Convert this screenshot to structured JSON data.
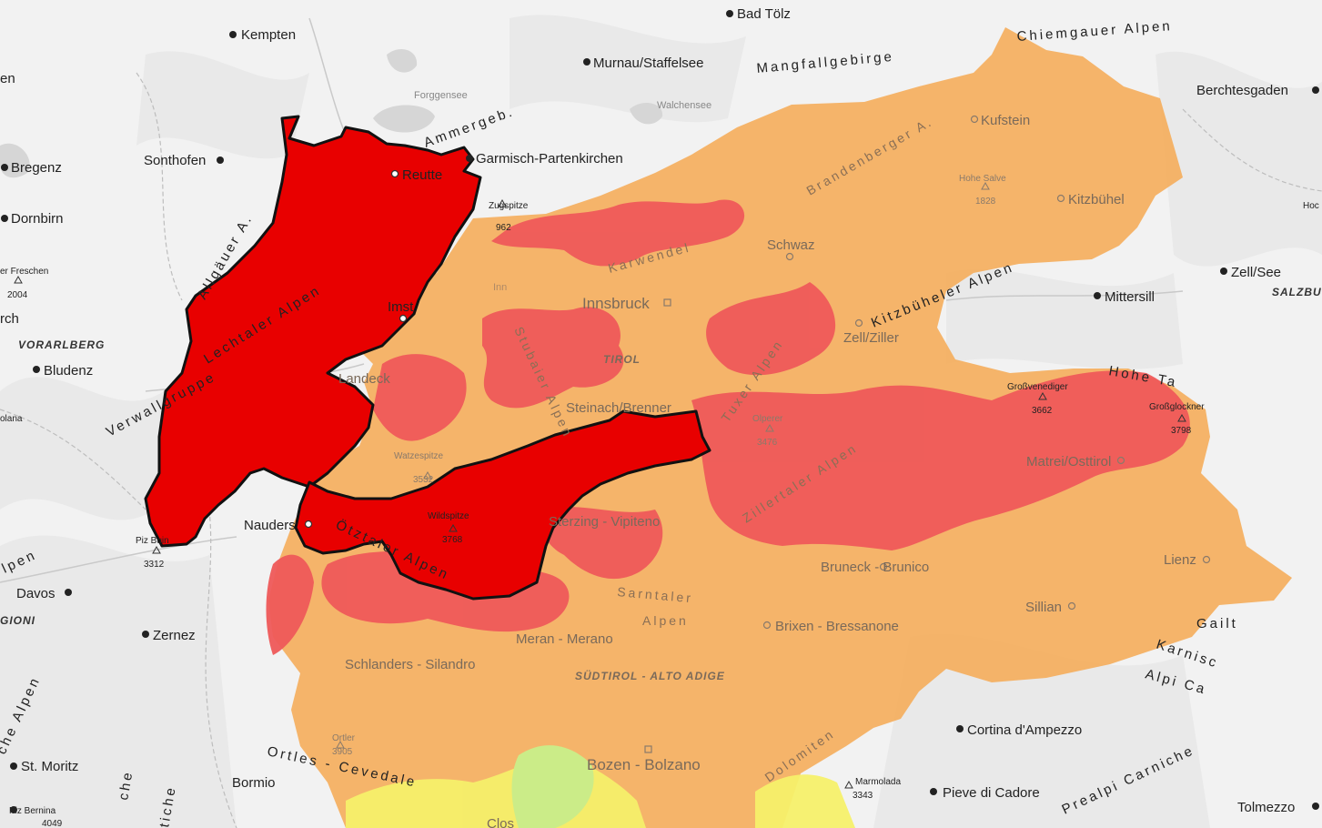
{
  "map": {
    "colors": {
      "background": "#f2f2f2",
      "lake": "#d6d6d6",
      "river": "#c9c9c9",
      "border": "#bdbdbd",
      "level_considerable": "#f5ad5b",
      "level_high": "#ef5a5a",
      "level_very_high": "#e80000",
      "level_moderate": "#f5f06a",
      "level_low": "#c9f08a",
      "outline": "#111111"
    },
    "regions": [
      {
        "name": "TIROL",
        "class": "region-dim"
      },
      {
        "name": "SÜDTIROL - ALTO ADIGE",
        "class": "region-dim"
      },
      {
        "name": "VORARLBERG",
        "class": "region"
      },
      {
        "name": "SALZBU",
        "class": "region"
      },
      {
        "name": "GIONI",
        "class": "region"
      }
    ],
    "ranges": [
      {
        "name": "Chiemgauer Alpen",
        "class": "range"
      },
      {
        "name": "Mangfallgebirge",
        "class": "range"
      },
      {
        "name": "Ammergeb.",
        "class": "range"
      },
      {
        "name": "Allgäuer A.",
        "class": "range"
      },
      {
        "name": "Lechtaler Alpen",
        "class": "range"
      },
      {
        "name": "Verwallgruppe",
        "class": "range"
      },
      {
        "name": "Ötztaler Alpen",
        "class": "range"
      },
      {
        "name": "Stubaier Alpen",
        "class": "range-dim"
      },
      {
        "name": "Karwendel",
        "class": "range-dim"
      },
      {
        "name": "Brandenberger A.",
        "class": "range-dim"
      },
      {
        "name": "Kitzbüheler Alpen",
        "class": "range"
      },
      {
        "name": "Tuxer Alpen",
        "class": "range-dim"
      },
      {
        "name": "Zillertaler Alpen",
        "class": "range-dim"
      },
      {
        "name": "Hohe Ta",
        "class": "range"
      },
      {
        "name": "Sarntaler",
        "class": "range-dim"
      },
      {
        "name": "Alpen",
        "class": "range-dim"
      },
      {
        "name": "Dolomiten",
        "class": "range-dim"
      },
      {
        "name": "Ortles - Cevedale",
        "class": "range"
      },
      {
        "name": "Gailt",
        "class": "range"
      },
      {
        "name": "Karnisc",
        "class": "range"
      },
      {
        "name": "Alpi Ca",
        "class": "range"
      },
      {
        "name": "Prealpi Carniche",
        "class": "range"
      },
      {
        "name": "che Alpen",
        "class": "range"
      },
      {
        "name": "che",
        "class": "range"
      },
      {
        "name": "tiche",
        "class": "range"
      },
      {
        "name": "lpen",
        "class": "range"
      }
    ],
    "towns": [
      {
        "name": "Bad Tölz",
        "class": "town"
      },
      {
        "name": "Kempten",
        "class": "town"
      },
      {
        "name": "Murnau/Staffelsee",
        "class": "town"
      },
      {
        "name": "Berchtesgaden",
        "class": "town"
      },
      {
        "name": "Garmisch-Partenkirchen",
        "class": "town"
      },
      {
        "name": "Sonthofen",
        "class": "town"
      },
      {
        "name": "Bregenz",
        "class": "town"
      },
      {
        "name": "Dornbirn",
        "class": "town"
      },
      {
        "name": "Reutte",
        "class": "town"
      },
      {
        "name": "Kufstein",
        "class": "town-dim"
      },
      {
        "name": "Kitzbühel",
        "class": "town-dim"
      },
      {
        "name": "Schwaz",
        "class": "town-dim"
      },
      {
        "name": "Zell/See",
        "class": "town"
      },
      {
        "name": "Mittersill",
        "class": "town"
      },
      {
        "name": "Innsbruck",
        "class": "town-dim"
      },
      {
        "name": "Imst",
        "class": "town"
      },
      {
        "name": "Zell/Ziller",
        "class": "town-dim"
      },
      {
        "name": "Landeck",
        "class": "town-dim"
      },
      {
        "name": "Bludenz",
        "class": "town"
      },
      {
        "name": "Steinach/Brenner",
        "class": "town-dim"
      },
      {
        "name": "Matrei/Osttirol",
        "class": "town-dim"
      },
      {
        "name": "Nauders",
        "class": "town"
      },
      {
        "name": "Sterzing - Vipiteno",
        "class": "town-dim"
      },
      {
        "name": "Lienz",
        "class": "town-dim"
      },
      {
        "name": "Bruneck - Brunico",
        "class": "town-dim"
      },
      {
        "name": "Davos",
        "class": "town"
      },
      {
        "name": "Sillian",
        "class": "town-dim"
      },
      {
        "name": "Zernez",
        "class": "town"
      },
      {
        "name": "Brixen - Bressanone",
        "class": "town-dim"
      },
      {
        "name": "Meran - Merano",
        "class": "town-dim"
      },
      {
        "name": "Schlanders - Silandro",
        "class": "town-dim"
      },
      {
        "name": "Cortina d'Ampezzo",
        "class": "town"
      },
      {
        "name": "St. Moritz",
        "class": "town"
      },
      {
        "name": "Bozen - Bolzano",
        "class": "town-dim"
      },
      {
        "name": "Bormio",
        "class": "town"
      },
      {
        "name": "Pieve di Cadore",
        "class": "town"
      },
      {
        "name": "Tolmezzo",
        "class": "town"
      },
      {
        "name": "rch",
        "class": "town"
      },
      {
        "name": "en",
        "class": "town"
      },
      {
        "name": "Clos",
        "class": "town-dim"
      }
    ],
    "peaks": [
      {
        "name": "Zugspitze",
        "elevation": "962",
        "class": "peak"
      },
      {
        "name": "Hohe Salve",
        "elevation": "1828",
        "class": "peak-dim"
      },
      {
        "name": "er Freschen",
        "elevation": "2004",
        "class": "peak"
      },
      {
        "name": "Watzespitze",
        "elevation": "3532",
        "class": "peak-dim"
      },
      {
        "name": "Wildspitze",
        "elevation": "3768",
        "class": "peak"
      },
      {
        "name": "Olperer",
        "elevation": "3476",
        "class": "peak-dim"
      },
      {
        "name": "Großvenediger",
        "elevation": "3662",
        "class": "peak"
      },
      {
        "name": "Großglockner",
        "elevation": "3798",
        "class": "peak"
      },
      {
        "name": "Piz Buin",
        "elevation": "3312",
        "class": "peak"
      },
      {
        "name": "Ortler",
        "elevation": "3905",
        "class": "peak-dim"
      },
      {
        "name": "Marmolada",
        "elevation": "3343",
        "class": "peak"
      },
      {
        "name": "Piz Bernina",
        "elevation": "4049",
        "class": "peak"
      },
      {
        "name": "Hoc",
        "elevation": "",
        "class": "peak"
      },
      {
        "name": "olana",
        "elevation": "",
        "class": "peak"
      }
    ],
    "lakes": [
      {
        "name": "Forggensee",
        "class": "lake"
      },
      {
        "name": "Walchensee",
        "class": "lake"
      },
      {
        "name": "Inn",
        "class": "lake-dim"
      }
    ]
  }
}
